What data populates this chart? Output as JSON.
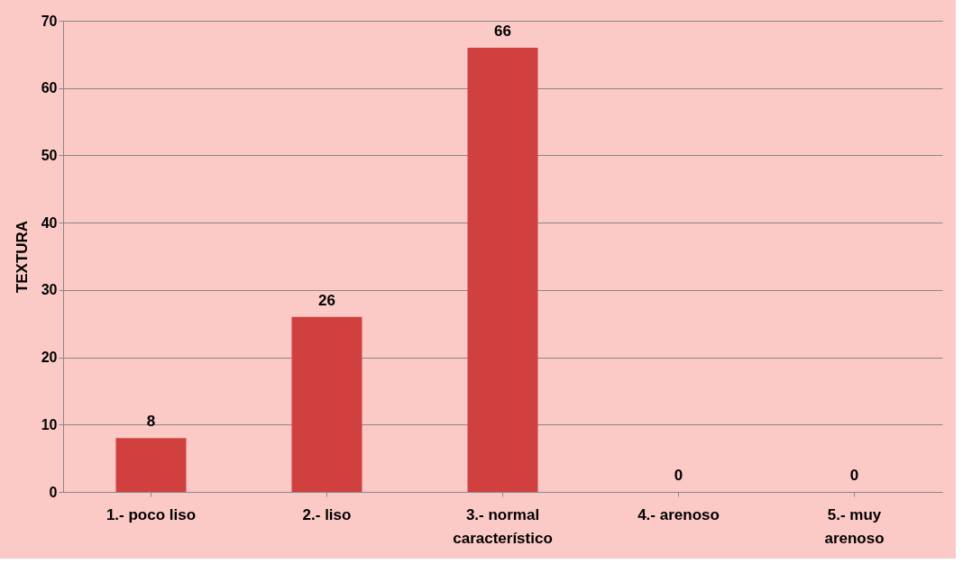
{
  "chart_data": {
    "type": "bar",
    "ylabel": "TEXTURA",
    "categories": [
      "1.- poco liso",
      "2.- liso",
      "3.- normal característico",
      "4.- arenoso",
      "5.- muy arenoso"
    ],
    "values": [
      8,
      26,
      66,
      0,
      0
    ],
    "color": "#d0403e",
    "ylim": [
      0,
      70
    ],
    "yticks": [
      0,
      10,
      20,
      30,
      40,
      50,
      60,
      70
    ],
    "grid": "y",
    "data_labels": true
  }
}
